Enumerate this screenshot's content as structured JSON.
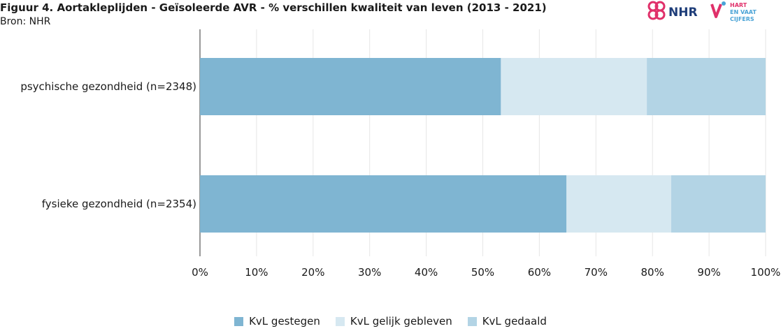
{
  "header": {
    "title": "Figuur 4. Aortakleplijden - Geïsoleerde AVR - % verschillen kwaliteit van leven (2013 - 2021)",
    "source": "Bron: NHR"
  },
  "logos": {
    "nhr": "NHR",
    "hart_line1": "HART",
    "hart_line2": "EN VAAT",
    "hart_line3": "CIJFERS"
  },
  "colors": {
    "gestegen": "#7fb5d2",
    "gelijk": "#d6e8f1",
    "gedaald": "#b3d4e5",
    "nhr_pink": "#e0306a",
    "nhr_blue": "#1d3c78"
  },
  "chart_data": {
    "type": "bar",
    "orientation": "horizontal",
    "stacked": "percent",
    "categories": [
      "psychische gezondheid (n=2348)",
      "fysieke gezondheid (n=2354)"
    ],
    "series": [
      {
        "name": "KvL gestegen",
        "values": [
          53.2,
          64.8
        ]
      },
      {
        "name": "KvL gelijk gebleven",
        "values": [
          25.8,
          18.5
        ]
      },
      {
        "name": "KvL gedaald",
        "values": [
          21.0,
          16.7
        ]
      }
    ],
    "xlim": [
      0,
      100
    ],
    "xticks": [
      "0%",
      "10%",
      "20%",
      "30%",
      "40%",
      "50%",
      "60%",
      "70%",
      "80%",
      "90%",
      "100%"
    ],
    "grid": true,
    "legend_position": "bottom"
  }
}
